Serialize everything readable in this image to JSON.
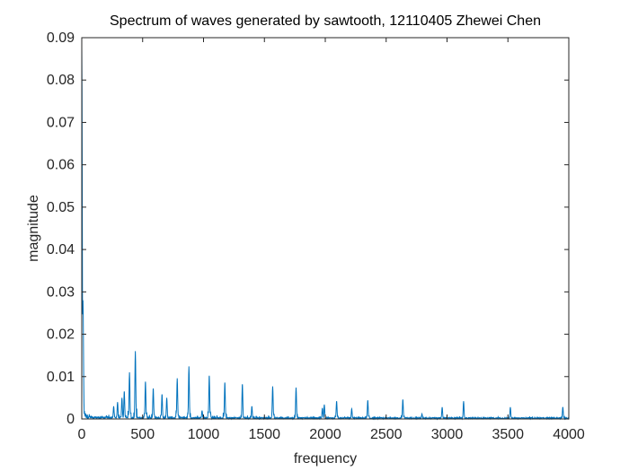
{
  "chart_data": {
    "type": "line",
    "title": "Spectrum of waves generated by sawtooth, 12110405 Zhewei Chen",
    "xlabel": "frequency",
    "ylabel": "magnitude",
    "xlim": [
      0,
      4000
    ],
    "ylim": [
      0,
      0.09
    ],
    "x_ticks": [
      0,
      500,
      1000,
      1500,
      2000,
      2500,
      3000,
      3500,
      4000
    ],
    "y_ticks": [
      0,
      0.01,
      0.02,
      0.03,
      0.04,
      0.05,
      0.06,
      0.07,
      0.08,
      0.09
    ],
    "x_tick_labels": [
      "0",
      "500",
      "1000",
      "1500",
      "2000",
      "2500",
      "3000",
      "3500",
      "4000"
    ],
    "y_tick_labels": [
      "0",
      "0.01",
      "0.02",
      "0.03",
      "0.04",
      "0.05",
      "0.06",
      "0.07",
      "0.08",
      "0.09"
    ],
    "grid": false,
    "line_color": "#0072BD",
    "series": [
      {
        "peaks": [
          {
            "x": 0,
            "y": 0.088
          },
          {
            "x": 10,
            "y": 0.028
          },
          {
            "x": 262,
            "y": 0.003
          },
          {
            "x": 294,
            "y": 0.004
          },
          {
            "x": 330,
            "y": 0.005
          },
          {
            "x": 349,
            "y": 0.0065
          },
          {
            "x": 392,
            "y": 0.011
          },
          {
            "x": 440,
            "y": 0.016
          },
          {
            "x": 523,
            "y": 0.0088
          },
          {
            "x": 587,
            "y": 0.0072
          },
          {
            "x": 659,
            "y": 0.0058
          },
          {
            "x": 698,
            "y": 0.005
          },
          {
            "x": 784,
            "y": 0.0096
          },
          {
            "x": 880,
            "y": 0.0124
          },
          {
            "x": 988,
            "y": 0.002
          },
          {
            "x": 1047,
            "y": 0.0102
          },
          {
            "x": 1175,
            "y": 0.0086
          },
          {
            "x": 1319,
            "y": 0.0082
          },
          {
            "x": 1397,
            "y": 0.003
          },
          {
            "x": 1568,
            "y": 0.0077
          },
          {
            "x": 1760,
            "y": 0.0074
          },
          {
            "x": 1976,
            "y": 0.0026
          },
          {
            "x": 1992,
            "y": 0.0034
          },
          {
            "x": 2093,
            "y": 0.0042
          },
          {
            "x": 2217,
            "y": 0.0024
          },
          {
            "x": 2349,
            "y": 0.0044
          },
          {
            "x": 2637,
            "y": 0.0046
          },
          {
            "x": 2794,
            "y": 0.0012
          },
          {
            "x": 2960,
            "y": 0.0028
          },
          {
            "x": 3136,
            "y": 0.0042
          },
          {
            "x": 3520,
            "y": 0.0028
          },
          {
            "x": 3951,
            "y": 0.0028
          }
        ]
      }
    ]
  }
}
